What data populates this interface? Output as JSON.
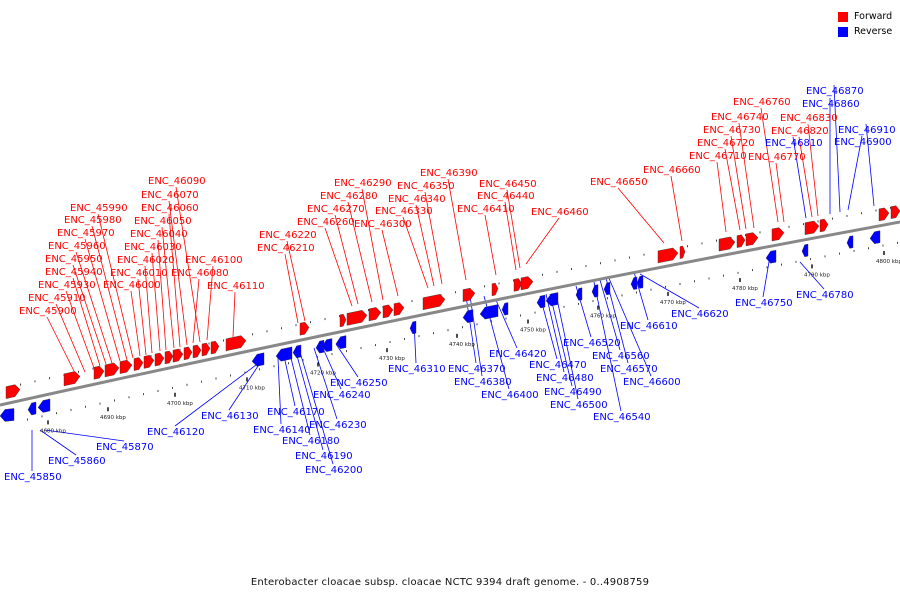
{
  "caption": "Enterobacter cloacae subsp. cloacae NCTC 9394 draft genome. - 0..4908759",
  "legend": [
    {
      "label": "Forward",
      "color": "#ff0000"
    },
    {
      "label": "Reverse",
      "color": "#0000ff"
    }
  ],
  "colors": {
    "forward": "#ff0000",
    "reverse": "#0000ff",
    "backbone": "#888888"
  },
  "tick_labels": [
    "4680 kbp",
    "4690 kbp",
    "4700 kbp",
    "4710 kbp",
    "4720 kbp",
    "4730 kbp",
    "4740 kbp",
    "4750 kbp",
    "4760 kbp",
    "4770 kbp",
    "4780 kbp",
    "4790 kbp",
    "4800 kbp"
  ],
  "forward_labels": [
    "ENC_45900",
    "ENC_45910",
    "ENC_45930",
    "ENC_45940",
    "ENC_45950",
    "ENC_45960",
    "ENC_45970",
    "ENC_45980",
    "ENC_45990",
    "ENC_46000",
    "ENC_46010",
    "ENC_46020",
    "ENC_46030",
    "ENC_46040",
    "ENC_46050",
    "ENC_46060",
    "ENC_46070",
    "ENC_46080",
    "ENC_46090",
    "ENC_46100",
    "ENC_46110",
    "ENC_46210",
    "ENC_46220",
    "ENC_46260",
    "ENC_46270",
    "ENC_46280",
    "ENC_46290",
    "ENC_46300",
    "ENC_46330",
    "ENC_46340",
    "ENC_46350",
    "ENC_46390",
    "ENC_46410",
    "ENC_46440",
    "ENC_46450",
    "ENC_46460",
    "ENC_46650",
    "ENC_46660",
    "ENC_46710",
    "ENC_46720",
    "ENC_46730",
    "ENC_46740",
    "ENC_46760",
    "ENC_46770",
    "ENC_46820",
    "ENC_46830"
  ],
  "reverse_labels": [
    "ENC_45850",
    "ENC_45860",
    "ENC_45870",
    "ENC_46120",
    "ENC_46130",
    "ENC_46140",
    "ENC_46170",
    "ENC_46180",
    "ENC_46190",
    "ENC_46200",
    "ENC_46230",
    "ENC_46240",
    "ENC_46250",
    "ENC_46310",
    "ENC_46370",
    "ENC_46380",
    "ENC_46400",
    "ENC_46420",
    "ENC_46470",
    "ENC_46480",
    "ENC_46490",
    "ENC_46500",
    "ENC_46520",
    "ENC_46540",
    "ENC_46560",
    "ENC_46570",
    "ENC_46600",
    "ENC_46610",
    "ENC_46620",
    "ENC_46750",
    "ENC_46780",
    "ENC_46810",
    "ENC_46860",
    "ENC_46870",
    "ENC_46900",
    "ENC_46910"
  ]
}
